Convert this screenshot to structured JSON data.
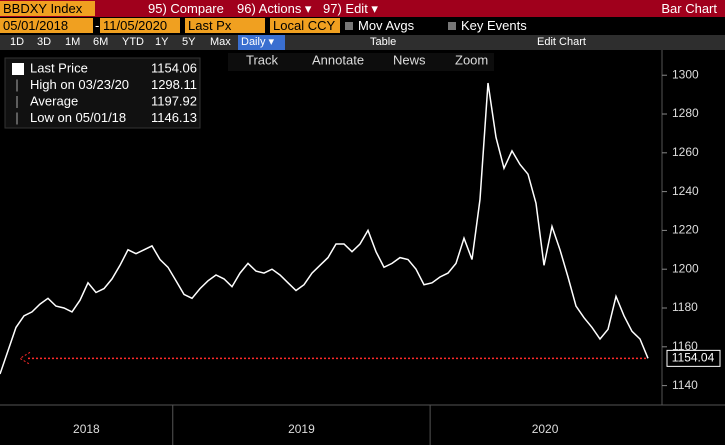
{
  "header": {
    "ticker": "BBDXY Index",
    "menu": [
      "95) Compare",
      "96) Actions ▾",
      "97) Edit ▾"
    ],
    "view": "Bar Chart"
  },
  "controls": {
    "start_date": "05/01/2018",
    "separator": "-",
    "end_date": "11/05/2020",
    "field": "Last Px",
    "currency": "Local CCY",
    "options": [
      "Mov Avgs",
      "Key Events"
    ]
  },
  "periods": [
    "1D",
    "3D",
    "1M",
    "6M",
    "YTD",
    "1Y",
    "5Y",
    "Max"
  ],
  "frequency": "Daily ▾",
  "tabs": [
    "Table",
    "Edit Chart"
  ],
  "tools": [
    "Track",
    "Annotate",
    "News",
    "Zoom"
  ],
  "legend": [
    {
      "label": "Last Price",
      "value": 1154.06
    },
    {
      "label": "High on 03/23/20",
      "value": 1298.11
    },
    {
      "label": "Average",
      "value": 1197.92
    },
    {
      "label": "Low on 05/01/18",
      "value": 1146.13
    }
  ],
  "chart_data": {
    "type": "line",
    "color": "#ffffff",
    "values": [
      1146,
      1158,
      1170,
      1176,
      1178,
      1182,
      1185,
      1181,
      1180,
      1178,
      1184,
      1193,
      1188,
      1190,
      1195,
      1202,
      1210,
      1208,
      1210,
      1212,
      1205,
      1201,
      1194,
      1187,
      1185,
      1190,
      1194,
      1197,
      1195,
      1191,
      1198,
      1203,
      1199,
      1198,
      1200,
      1197,
      1193,
      1189,
      1192,
      1198,
      1202,
      1206,
      1213,
      1213,
      1209,
      1213,
      1220,
      1209,
      1201,
      1203,
      1206,
      1205,
      1200,
      1192,
      1193,
      1196,
      1198,
      1203,
      1216,
      1205,
      1236,
      1296,
      1268,
      1252,
      1261,
      1254,
      1249,
      1234,
      1202,
      1222,
      1210,
      1196,
      1181,
      1175,
      1170,
      1164,
      1169,
      1186,
      1176,
      1168,
      1164,
      1154.06
    ],
    "ylim": [
      1130,
      1313
    ],
    "yticks": [
      1140,
      1160,
      1180,
      1200,
      1220,
      1240,
      1260,
      1280,
      1300
    ],
    "x_labels": [
      "2018",
      "2019",
      "2020"
    ],
    "reference": {
      "value": 1154.04,
      "color": "#ff2a2a"
    }
  }
}
